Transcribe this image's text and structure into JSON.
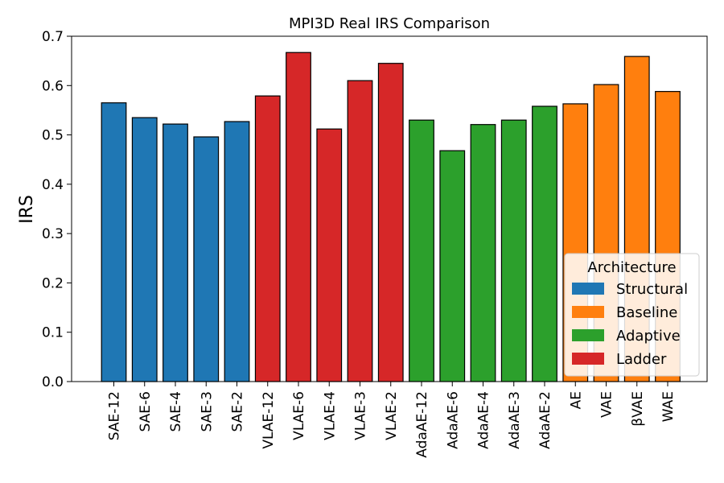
{
  "chart_data": {
    "type": "bar",
    "title": "MPI3D Real IRS Comparison",
    "xlabel": "",
    "ylabel": "IRS",
    "ylim": [
      0,
      0.7
    ],
    "yticks": [
      "0.0",
      "0.1",
      "0.2",
      "0.3",
      "0.4",
      "0.5",
      "0.6",
      "0.7"
    ],
    "categories": [
      "SAE-12",
      "SAE-6",
      "SAE-4",
      "SAE-3",
      "SAE-2",
      "VLAE-12",
      "VLAE-6",
      "VLAE-4",
      "VLAE-3",
      "VLAE-2",
      "AdaAE-12",
      "AdaAE-6",
      "AdaAE-4",
      "AdaAE-3",
      "AdaAE-2",
      "AE",
      "VAE",
      "βVAE",
      "WAE"
    ],
    "values": [
      0.565,
      0.535,
      0.522,
      0.496,
      0.527,
      0.579,
      0.667,
      0.512,
      0.61,
      0.645,
      0.53,
      0.468,
      0.521,
      0.53,
      0.558,
      0.563,
      0.602,
      0.659,
      0.588
    ],
    "groups": [
      "Structural",
      "Structural",
      "Structural",
      "Structural",
      "Structural",
      "Ladder",
      "Ladder",
      "Ladder",
      "Ladder",
      "Ladder",
      "Adaptive",
      "Adaptive",
      "Adaptive",
      "Adaptive",
      "Adaptive",
      "Baseline",
      "Baseline",
      "Baseline",
      "Baseline"
    ],
    "legend": {
      "title": "Architecture",
      "placement": "lower-right",
      "entries": [
        {
          "label": "Structural",
          "color": "#1f77b4"
        },
        {
          "label": "Baseline",
          "color": "#ff7f0e"
        },
        {
          "label": "Adaptive",
          "color": "#2ca02c"
        },
        {
          "label": "Ladder",
          "color": "#d62728"
        }
      ]
    },
    "grid": false
  }
}
